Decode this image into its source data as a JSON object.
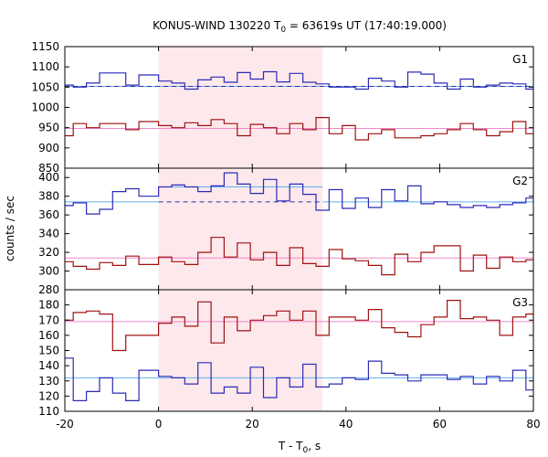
{
  "chart_data": {
    "type": "line",
    "title_main": "KONUS-WIND 130220 T",
    "title_sub": "0",
    "title_rest": " = 63619s UT (17:40:19.000)",
    "xlabel_main": "T - T",
    "xlabel_sub": "0",
    "xlabel_rest": ", s",
    "ylabel": "counts / sec",
    "xlim": [
      -20,
      80
    ],
    "xticks": [
      "-20",
      "0",
      "20",
      "40",
      "60",
      "80"
    ],
    "highlight_interval": [
      0,
      35
    ],
    "bin_edges": [
      -20,
      -18.2,
      -15.4,
      -12.6,
      -9.8,
      -7.0,
      -4.2,
      0.0,
      2.8,
      5.6,
      8.4,
      11.2,
      14.0,
      16.8,
      19.6,
      22.4,
      25.2,
      28.0,
      30.8,
      33.6,
      36.4,
      39.2,
      42.0,
      44.8,
      47.6,
      50.4,
      53.2,
      56.0,
      58.8,
      61.6,
      64.4,
      67.2,
      70.0,
      72.8,
      75.6,
      78.4,
      80
    ],
    "panels": [
      {
        "label": "G1",
        "ylim": [
          850,
          1150
        ],
        "yticks": [
          "850",
          "900",
          "950",
          "1000",
          "1050",
          "1100",
          "1150"
        ],
        "series": [
          {
            "color": "#2b2bb5",
            "values": [
              1055,
              1050,
              1060,
              1085,
              1085,
              1055,
              1080,
              1065,
              1060,
              1045,
              1068,
              1075,
              1062,
              1086,
              1070,
              1088,
              1063,
              1084,
              1062,
              1058,
              1050,
              1050,
              1045,
              1072,
              1065,
              1050,
              1087,
              1082,
              1060,
              1045,
              1070,
              1050,
              1055,
              1060,
              1058,
              1045
            ]
          },
          {
            "color": "#a01010",
            "values": [
              930,
              960,
              950,
              960,
              960,
              945,
              965,
              955,
              950,
              962,
              955,
              970,
              960,
              930,
              958,
              950,
              935,
              960,
              945,
              975,
              935,
              955,
              920,
              935,
              945,
              925,
              925,
              930,
              935,
              945,
              960,
              945,
              930,
              940,
              965,
              935
            ]
          }
        ],
        "fit_lines": [
          {
            "color": "#60b0ee",
            "style": "solid",
            "value": 1052,
            "x_range": [
              -20,
              80
            ]
          },
          {
            "color": "#3030a0",
            "style": "dashed",
            "value": 1052,
            "x_range": [
              -20,
              80
            ]
          },
          {
            "color": "#ee88cc",
            "style": "solid",
            "value": 948,
            "x_range": [
              -20,
              80
            ]
          }
        ]
      },
      {
        "label": "G2",
        "ylim": [
          280,
          410
        ],
        "yticks": [
          "280",
          "300",
          "320",
          "340",
          "360",
          "380",
          "400"
        ],
        "series": [
          {
            "color": "#2b2bb5",
            "values": [
              370,
              373,
              361,
              366,
              385,
              388,
              380,
              390,
              392,
              390,
              385,
              391,
              405,
              393,
              383,
              398,
              375,
              393,
              382,
              365,
              387,
              367,
              378,
              368,
              387,
              375,
              391,
              372,
              374,
              371,
              368,
              370,
              368,
              371,
              373,
              378
            ]
          },
          {
            "color": "#a01010",
            "values": [
              310,
              305,
              302,
              309,
              306,
              316,
              307,
              315,
              310,
              307,
              320,
              336,
              315,
              330,
              312,
              320,
              306,
              325,
              308,
              305,
              323,
              313,
              311,
              306,
              296,
              318,
              310,
              320,
              327,
              327,
              300,
              317,
              303,
              315,
              310,
              312
            ]
          }
        ],
        "fit_lines": [
          {
            "color": "#60b0ee",
            "style": "solid",
            "value": 374,
            "x_range": [
              -20,
              0
            ]
          },
          {
            "color": "#60b0ee",
            "style": "solid",
            "value": 390,
            "x_range": [
              0,
              35
            ]
          },
          {
            "color": "#60b0ee",
            "style": "solid",
            "value": 374,
            "x_range": [
              35,
              80
            ]
          },
          {
            "color": "#3030a0",
            "style": "dashed",
            "value": 374,
            "x_range": [
              0,
              35
            ]
          },
          {
            "color": "#ee88cc",
            "style": "solid",
            "value": 314,
            "x_range": [
              -20,
              80
            ]
          }
        ]
      },
      {
        "label": "G3",
        "ylim": [
          110,
          190
        ],
        "yticks": [
          "110",
          "120",
          "130",
          "140",
          "150",
          "160",
          "170",
          "180"
        ],
        "series": [
          {
            "color": "#2b2bb5",
            "values": [
              145,
              117,
              123,
              132,
              122,
              117,
              137,
              133,
              132,
              128,
              142,
              122,
              126,
              122,
              139,
              119,
              132,
              126,
              141,
              126,
              128,
              132,
              131,
              143,
              135,
              134,
              130,
              134,
              134,
              131,
              133,
              128,
              133,
              130,
              137,
              124
            ]
          },
          {
            "color": "#a01010",
            "values": [
              170,
              175,
              176,
              174,
              150,
              160,
              160,
              168,
              172,
              166,
              182,
              155,
              172,
              163,
              170,
              173,
              176,
              170,
              176,
              160,
              172,
              172,
              170,
              177,
              165,
              162,
              159,
              167,
              172,
              183,
              171,
              172,
              170,
              160,
              172,
              174
            ]
          }
        ],
        "fit_lines": [
          {
            "color": "#60b0ee",
            "style": "solid",
            "value": 132,
            "x_range": [
              -20,
              80
            ]
          },
          {
            "color": "#ee88cc",
            "style": "solid",
            "value": 169,
            "x_range": [
              -20,
              80
            ]
          }
        ]
      }
    ]
  }
}
